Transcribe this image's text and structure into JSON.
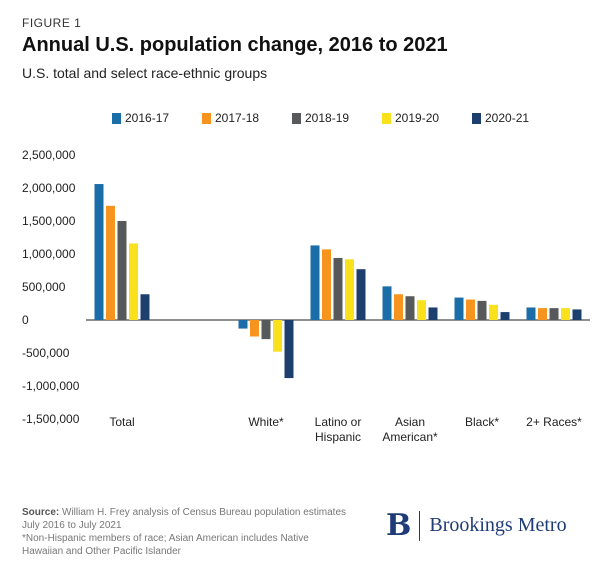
{
  "figure_label": "FIGURE 1",
  "title": "Annual U.S. population change, 2016 to 2021",
  "subtitle": "U.S. total and select race-ethnic groups",
  "footer": {
    "source_label": "Source:",
    "source_text": "William H. Frey analysis of Census Bureau population estimates July 2016 to July 2021",
    "note": "*Non-Hispanic members of race; Asian American includes Native Hawaiian and Other Pacific Islander"
  },
  "logo": {
    "mark": "B",
    "text": "Brookings Metro"
  },
  "chart_data": {
    "type": "bar",
    "categories": [
      "Total",
      "",
      "White*",
      "Latino or Hispanic",
      "Asian American*",
      "Black*",
      "2+ Races*"
    ],
    "category_labels": [
      [
        "Total"
      ],
      [],
      [
        "White*"
      ],
      [
        "Latino or",
        "Hispanic"
      ],
      [
        "Asian",
        "American*"
      ],
      [
        "Black*"
      ],
      [
        "2+ Races*"
      ]
    ],
    "series": [
      {
        "name": "2016-17",
        "color": "#1a6ea8",
        "values": [
          2060000,
          null,
          -130000,
          1130000,
          510000,
          340000,
          190000
        ]
      },
      {
        "name": "2017-18",
        "color": "#f7941d",
        "values": [
          1730000,
          null,
          -250000,
          1070000,
          390000,
          310000,
          180000
        ]
      },
      {
        "name": "2018-19",
        "color": "#58595b",
        "values": [
          1500000,
          null,
          -290000,
          940000,
          360000,
          290000,
          180000
        ]
      },
      {
        "name": "2019-20",
        "color": "#f9e11e",
        "values": [
          1160000,
          null,
          -480000,
          920000,
          300000,
          230000,
          180000
        ]
      },
      {
        "name": "2020-21",
        "color": "#1d3f6e",
        "values": [
          390000,
          null,
          -880000,
          770000,
          190000,
          120000,
          160000
        ]
      }
    ],
    "yticks": [
      2500000,
      2000000,
      1500000,
      1000000,
      500000,
      0,
      -500000,
      -1000000,
      -1500000
    ],
    "ytick_labels": [
      "2,500,000",
      "2,000,000",
      "1,500,000",
      "1,000,000",
      "500,000",
      "0",
      "-500,000",
      "-1,000,000",
      "-1,500,000"
    ],
    "ylim": [
      -1500000,
      2500000
    ],
    "legend_position": "top",
    "grid": false
  }
}
